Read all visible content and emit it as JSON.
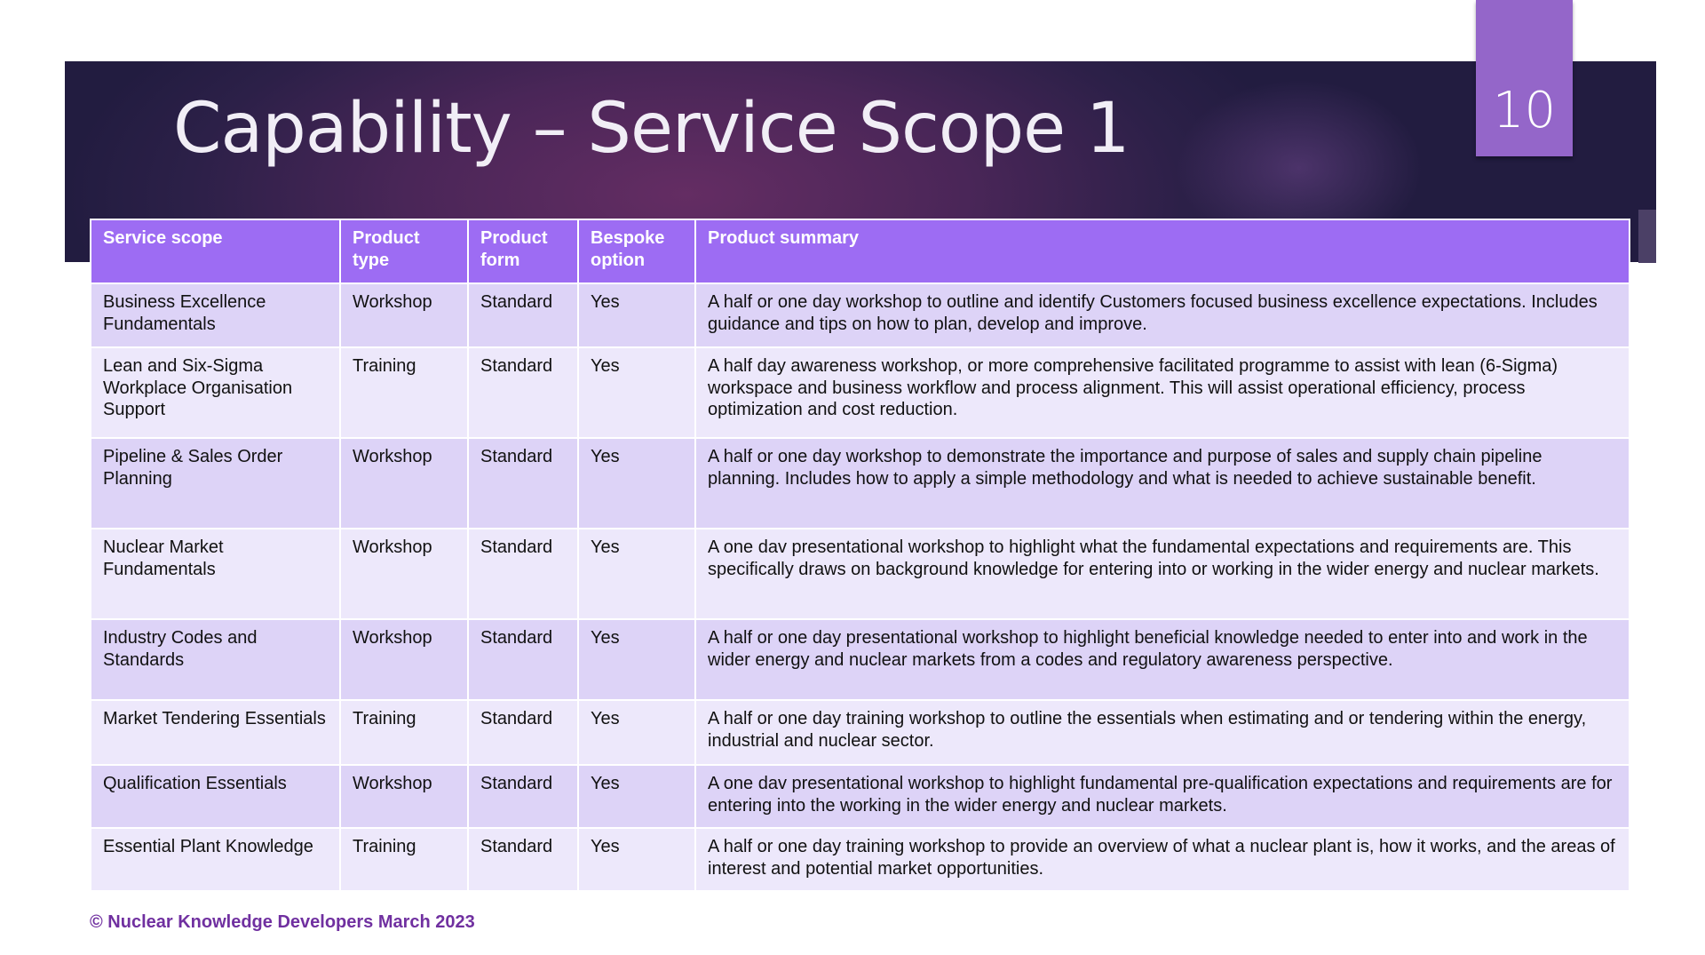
{
  "slide": {
    "title": "Capability – Service Scope 1",
    "page_number": "10"
  },
  "table": {
    "headers": [
      "Service scope",
      "Product type",
      "Product form",
      "Bespoke option",
      "Product summary"
    ],
    "rows": [
      [
        "Business Excellence Fundamentals",
        "Workshop",
        "Standard",
        "Yes",
        "A half or one day workshop to outline and identify Customers focused business excellence expectations. Includes guidance and tips on how to plan, develop and improve."
      ],
      [
        "Lean and Six-Sigma Workplace Organisation Support",
        "Training",
        "Standard",
        "Yes",
        "A half day awareness workshop, or more comprehensive facilitated programme to assist with lean (6-Sigma) workspace and business workflow and process alignment. This will assist operational efficiency, process optimization and cost reduction."
      ],
      [
        "Pipeline & Sales Order Planning",
        "Workshop",
        "Standard",
        "Yes",
        "A half or one day workshop to demonstrate the importance and purpose of sales and supply chain pipeline planning. Includes how to apply a simple methodology and what is needed to achieve sustainable benefit."
      ],
      [
        "Nuclear Market Fundamentals",
        "Workshop",
        "Standard",
        "Yes",
        "A one dav presentational workshop to highlight what the fundamental expectations and requirements are. This specifically draws on background knowledge for entering into or working in the wider energy and nuclear markets."
      ],
      [
        "Industry Codes and Standards",
        "Workshop",
        "Standard",
        "Yes",
        "A half or one day presentational workshop to highlight beneficial knowledge needed to enter into and work in the wider energy and nuclear markets from a codes and regulatory awareness perspective."
      ],
      [
        "Market Tendering Essentials",
        "Training",
        "Standard",
        "Yes",
        "A half or one day training workshop to outline the essentials when estimating and or tendering within the energy, industrial and nuclear sector."
      ],
      [
        "Qualification Essentials",
        "Workshop",
        "Standard",
        "Yes",
        "A one dav presentational workshop to highlight fundamental pre-qualification expectations and requirements are for entering into the working in the wider energy and nuclear markets."
      ],
      [
        "Essential Plant Knowledge",
        "Training",
        "Standard",
        "Yes",
        "A half or one day training workshop to provide an overview of what a nuclear plant is, how it works, and the areas of interest and potential market opportunities."
      ]
    ]
  },
  "footer": {
    "copyright": "© Nuclear Knowledge Developers March 2023"
  },
  "colors": {
    "header": "#9d6cf3",
    "row_dark": "#ddd3f7",
    "row_light": "#ede8fb",
    "page_box": "#9466c9",
    "footer_text": "#7030a0"
  }
}
